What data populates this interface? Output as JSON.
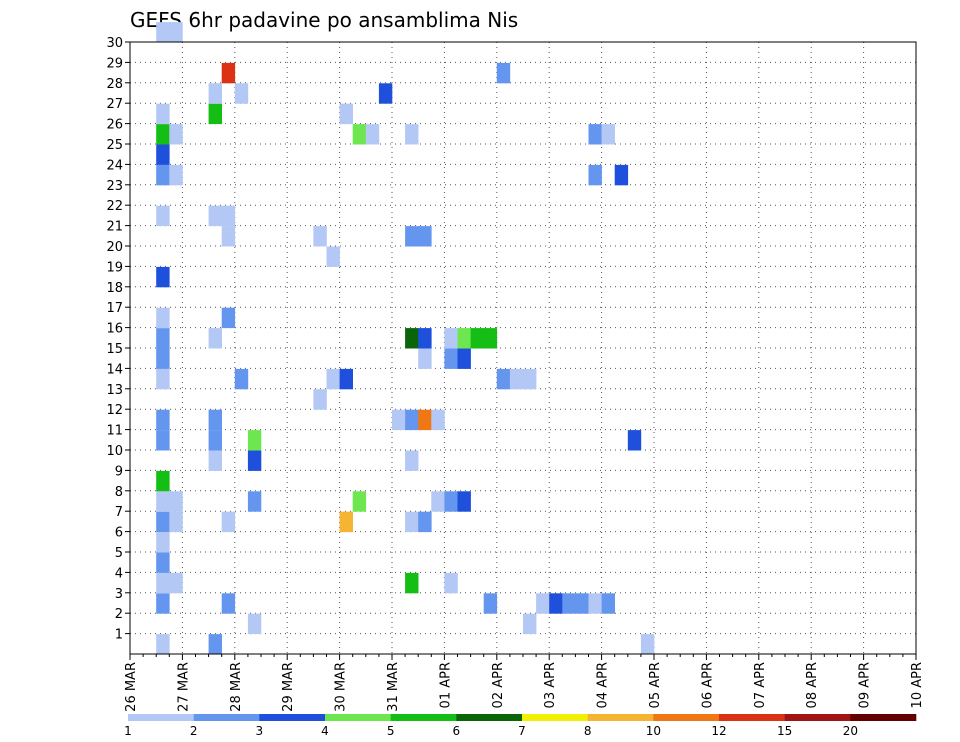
{
  "chart_data": {
    "type": "heatmap",
    "title": "GEFS 6hr padavine po ansamblima Nis",
    "xlabel": "",
    "ylabel": "",
    "x_ticks": [
      "26 MAR",
      "27 MAR",
      "28 MAR",
      "29 MAR",
      "30 MAR",
      "31 MAR",
      "01 APR",
      "02 APR",
      "03 APR",
      "04 APR",
      "05 APR",
      "06 APR",
      "07 APR",
      "08 APR",
      "09 APR",
      "10 APR"
    ],
    "y_ticks": [
      1,
      2,
      3,
      4,
      5,
      6,
      7,
      8,
      9,
      10,
      11,
      12,
      13,
      14,
      15,
      16,
      17,
      18,
      19,
      20,
      21,
      22,
      23,
      24,
      25,
      26,
      27,
      28,
      29,
      30
    ],
    "xlim": [
      0,
      60
    ],
    "ylim": [
      0,
      30
    ],
    "grid": true,
    "colorbar": {
      "colors": [
        "#b4c8f5",
        "#6496f0",
        "#1e50dc",
        "#6ee650",
        "#14be14",
        "#0a640a",
        "#f0f000",
        "#f5b432",
        "#f07814",
        "#dc3214",
        "#a01414",
        "#640000"
      ],
      "labels": [
        "1",
        "2",
        "3",
        "4",
        "5",
        "6",
        "7",
        "8",
        "10",
        "12",
        "15",
        "20"
      ]
    },
    "cells": [
      [
        2,
        0,
        0
      ],
      [
        2,
        2,
        1
      ],
      [
        2,
        3,
        0
      ],
      [
        2,
        4,
        1
      ],
      [
        2,
        5,
        0
      ],
      [
        2,
        6,
        1
      ],
      [
        2,
        7,
        0
      ],
      [
        2,
        8,
        4
      ],
      [
        2,
        10,
        1
      ],
      [
        2,
        11,
        1
      ],
      [
        2,
        13,
        0
      ],
      [
        2,
        14,
        1
      ],
      [
        2,
        15,
        1
      ],
      [
        2,
        16,
        0
      ],
      [
        2,
        18,
        2
      ],
      [
        2,
        21,
        0
      ],
      [
        2,
        23,
        1
      ],
      [
        2,
        24,
        2
      ],
      [
        2,
        25,
        4
      ],
      [
        2,
        26,
        0
      ],
      [
        2,
        30,
        0
      ],
      [
        3,
        3,
        0
      ],
      [
        3,
        6,
        0
      ],
      [
        3,
        7,
        0
      ],
      [
        3,
        25,
        0
      ],
      [
        3,
        23,
        0
      ],
      [
        3,
        30,
        0
      ],
      [
        6,
        0,
        1
      ],
      [
        6,
        9,
        0
      ],
      [
        6,
        10,
        1
      ],
      [
        6,
        11,
        1
      ],
      [
        6,
        15,
        0
      ],
      [
        6,
        21,
        0
      ],
      [
        6,
        26,
        4
      ],
      [
        6,
        27,
        0
      ],
      [
        7,
        20,
        0
      ],
      [
        7,
        21,
        0
      ],
      [
        7,
        2,
        1
      ],
      [
        7,
        6,
        0
      ],
      [
        7,
        16,
        1
      ],
      [
        7,
        28,
        9
      ],
      [
        8,
        13,
        1
      ],
      [
        8,
        27,
        0
      ],
      [
        9,
        1,
        0
      ],
      [
        9,
        7,
        1
      ],
      [
        9,
        9,
        2
      ],
      [
        9,
        10,
        3
      ],
      [
        14,
        12,
        0
      ],
      [
        14,
        20,
        0
      ],
      [
        15,
        13,
        0
      ],
      [
        15,
        19,
        0
      ],
      [
        16,
        6,
        7
      ],
      [
        16,
        13,
        2
      ],
      [
        16,
        26,
        0
      ],
      [
        17,
        7,
        3
      ],
      [
        17,
        25,
        3
      ],
      [
        18,
        25,
        0
      ],
      [
        19,
        27,
        2
      ],
      [
        20,
        11,
        0
      ],
      [
        21,
        3,
        4
      ],
      [
        21,
        6,
        0
      ],
      [
        21,
        9,
        0
      ],
      [
        21,
        11,
        1
      ],
      [
        21,
        15,
        5
      ],
      [
        21,
        20,
        1
      ],
      [
        21,
        25,
        0
      ],
      [
        22,
        6,
        1
      ],
      [
        22,
        11,
        8
      ],
      [
        22,
        14,
        0
      ],
      [
        22,
        15,
        2
      ],
      [
        22,
        20,
        1
      ],
      [
        23,
        7,
        0
      ],
      [
        23,
        11,
        0
      ],
      [
        24,
        3,
        0
      ],
      [
        24,
        7,
        1
      ],
      [
        24,
        14,
        1
      ],
      [
        24,
        15,
        0
      ],
      [
        25,
        7,
        2
      ],
      [
        25,
        14,
        2
      ],
      [
        25,
        15,
        3
      ],
      [
        26,
        15,
        4
      ],
      [
        27,
        15,
        4
      ],
      [
        27,
        2,
        1
      ],
      [
        28,
        28,
        1
      ],
      [
        28,
        13,
        1
      ],
      [
        29,
        13,
        0
      ],
      [
        30,
        1,
        0
      ],
      [
        30,
        13,
        0
      ],
      [
        31,
        2,
        0
      ],
      [
        32,
        2,
        2
      ],
      [
        33,
        2,
        1
      ],
      [
        34,
        2,
        1
      ],
      [
        35,
        2,
        0
      ],
      [
        35,
        23,
        1
      ],
      [
        35,
        25,
        1
      ],
      [
        36,
        2,
        1
      ],
      [
        36,
        25,
        0
      ],
      [
        37,
        23,
        2
      ],
      [
        38,
        10,
        2
      ],
      [
        39,
        0,
        0
      ]
    ]
  }
}
